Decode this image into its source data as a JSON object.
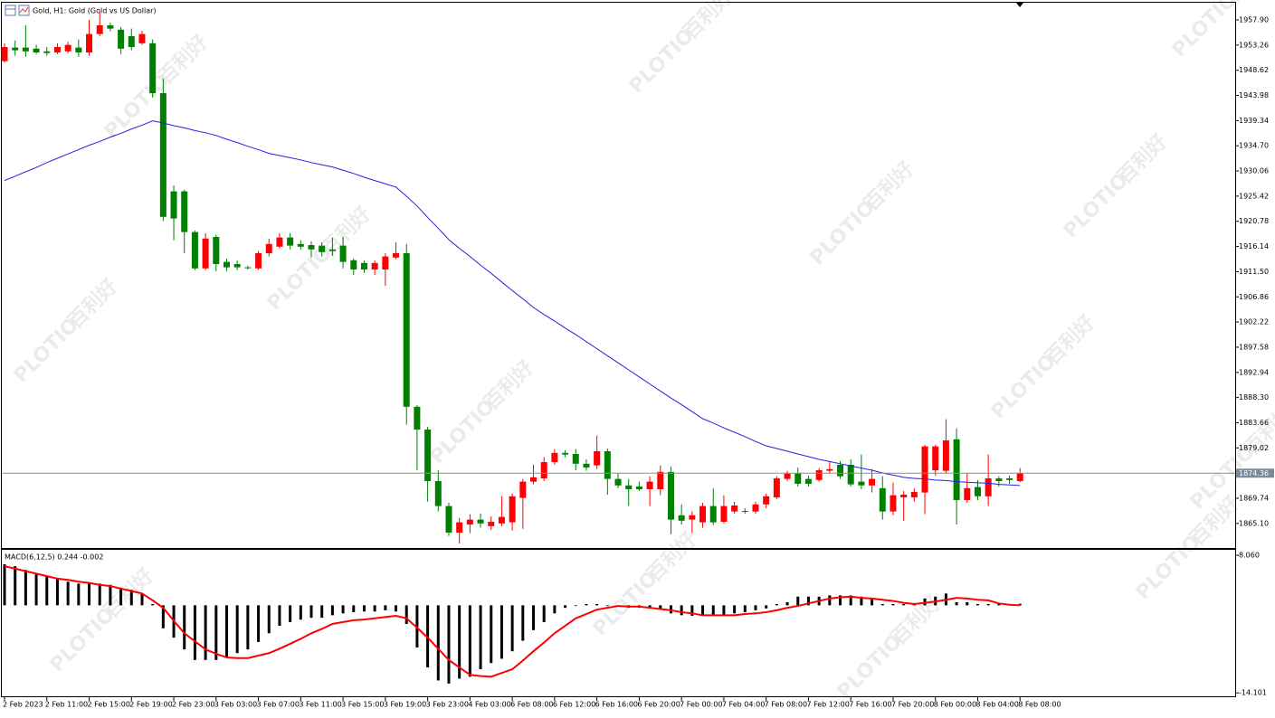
{
  "chart_data": [
    {
      "type": "candlestick",
      "title": "Gold, H1:  Gold (Gold vs US Dollar)",
      "categories": [
        "2 Feb 2023",
        null,
        null,
        null,
        "2 Feb 11:00",
        null,
        null,
        null,
        "2 Feb 15:00",
        null,
        null,
        null,
        "2 Feb 19:00",
        null,
        null,
        null,
        "2 Feb 23:00",
        null,
        null,
        null,
        "3 Feb 03:00",
        null,
        null,
        null,
        "3 Feb 07:00",
        null,
        null,
        null,
        "3 Feb 11:00",
        null,
        null,
        null,
        "3 Feb 15:00",
        null,
        null,
        null,
        "3 Feb 19:00",
        null,
        null,
        null,
        "3 Feb 23:00",
        null,
        null,
        null,
        "4 Feb 03:00",
        null,
        null,
        null,
        "6 Feb 08:00",
        null,
        null,
        null,
        "6 Feb 12:00",
        null,
        null,
        null,
        "6 Feb 16:00",
        null,
        null,
        null,
        "6 Feb 20:00",
        null,
        null,
        null,
        "7 Feb 00:00",
        null,
        null,
        null,
        "7 Feb 04:00",
        null,
        null,
        null,
        "7 Feb 08:00",
        null,
        null,
        null,
        "7 Feb 12:00",
        null,
        null,
        null,
        "7 Feb 16:00",
        null,
        null,
        null,
        "7 Feb 20:00",
        null,
        null,
        null,
        "8 Feb 00:00",
        null,
        null,
        null,
        "8 Feb 04:00",
        null,
        null,
        null,
        "8 Feb 08:00"
      ],
      "open": [
        1950.3,
        1952.8,
        1952.8,
        1952.6,
        1952.1,
        1951.9,
        1952.1,
        1952.8,
        1951.9,
        1955.3,
        1956.9,
        1956.1,
        1954.9,
        1953.6,
        1953.6,
        1944.4,
        1926.3,
        1926.3,
        1918.8,
        1912.1,
        1917.9,
        1913.3,
        1912.9,
        1912.3,
        1912.1,
        1914.9,
        1916.1,
        1917.8,
        1916.6,
        1916.4,
        1916.3,
        1915.6,
        1916.3,
        1913.6,
        1913.1,
        1911.9,
        1911.9,
        1914.1,
        1914.9,
        1886.6,
        1882.4,
        1872.9,
        1868.3,
        1863.4,
        1864.9,
        1865.8,
        1864.6,
        1865.1,
        1865.3,
        1869.8,
        1872.8,
        1873.4,
        1876.4,
        1878.1,
        1877.9,
        1876.1,
        1875.8,
        1878.4,
        1873.3,
        1872.1,
        1871.9,
        1871.4,
        1871.4,
        1874.6,
        1866.6,
        1865.8,
        1865.3,
        1868.3,
        1865.4,
        1867.3,
        1867.3,
        1867.3,
        1868.6,
        1869.9,
        1873.3,
        1874.3,
        1873.3,
        1873.1,
        1874.8,
        1875.9,
        1875.9,
        1872.8,
        1872.1,
        1871.6,
        1867.3,
        1869.9,
        1869.9,
        1870.8,
        1874.9,
        1874.8,
        1880.6,
        1869.4,
        1871.8,
        1870.1,
        1873.4,
        1873.4,
        1872.9
      ],
      "high": [
        1953.6,
        1954.1,
        1956.9,
        1953.3,
        1952.9,
        1953.6,
        1953.9,
        1954.3,
        1957.9,
        1959.3,
        1957.4,
        1956.6,
        1956.3,
        1955.9,
        1954.3,
        1947.1,
        1927.4,
        1926.6,
        1919.1,
        1918.6,
        1918.3,
        1913.9,
        1913.6,
        1912.6,
        1915.3,
        1917.6,
        1918.6,
        1918.6,
        1917.3,
        1917.1,
        1916.9,
        1917.8,
        1917.9,
        1913.9,
        1913.6,
        1913.6,
        1914.9,
        1916.9,
        1916.6,
        1886.9,
        1882.9,
        1874.9,
        1868.9,
        1866.1,
        1866.8,
        1866.9,
        1866.4,
        1870.1,
        1870.6,
        1873.3,
        1875.9,
        1877.3,
        1878.8,
        1878.6,
        1878.8,
        1876.9,
        1881.3,
        1878.9,
        1874.4,
        1873.3,
        1872.8,
        1873.8,
        1875.8,
        1875.6,
        1868.6,
        1867.3,
        1868.9,
        1871.6,
        1870.3,
        1869.1,
        1867.9,
        1869.1,
        1870.6,
        1873.8,
        1874.8,
        1875.4,
        1873.9,
        1875.3,
        1876.6,
        1876.6,
        1876.9,
        1877.8,
        1875.1,
        1873.8,
        1872.6,
        1871.1,
        1871.6,
        1879.6,
        1879.6,
        1884.3,
        1882.6,
        1874.4,
        1873.1,
        1877.8,
        1873.8,
        1873.9,
        1875.3
      ],
      "low": [
        1950.0,
        1951.3,
        1951.1,
        1951.6,
        1951.3,
        1951.6,
        1951.8,
        1951.1,
        1951.3,
        1954.9,
        1955.8,
        1951.6,
        1952.3,
        1953.3,
        1943.6,
        1920.8,
        1917.3,
        1914.9,
        1911.8,
        1911.8,
        1911.6,
        1911.6,
        1911.8,
        1911.9,
        1911.8,
        1914.3,
        1915.8,
        1915.6,
        1915.6,
        1914.1,
        1914.3,
        1914.4,
        1912.1,
        1910.9,
        1911.3,
        1910.9,
        1908.9,
        1913.8,
        1883.3,
        1874.9,
        1869.1,
        1867.3,
        1862.8,
        1861.4,
        1863.3,
        1864.3,
        1863.9,
        1864.6,
        1863.8,
        1864.1,
        1872.3,
        1872.9,
        1875.9,
        1877.3,
        1874.9,
        1874.8,
        1875.1,
        1870.4,
        1871.6,
        1868.3,
        1871.1,
        1868.3,
        1870.3,
        1863.1,
        1864.9,
        1863.3,
        1864.3,
        1864.8,
        1865.1,
        1866.9,
        1866.9,
        1866.9,
        1867.9,
        1869.6,
        1872.9,
        1871.9,
        1871.9,
        1872.8,
        1874.3,
        1873.3,
        1871.9,
        1871.4,
        1870.8,
        1865.8,
        1866.6,
        1865.6,
        1869.1,
        1866.8,
        1873.9,
        1874.3,
        1864.9,
        1868.9,
        1869.4,
        1868.3,
        1871.9,
        1872.4,
        1872.7
      ],
      "close": [
        1952.9,
        1952.3,
        1952.1,
        1951.9,
        1951.8,
        1952.9,
        1953.3,
        1951.9,
        1955.3,
        1956.9,
        1956.3,
        1952.6,
        1952.9,
        1955.3,
        1944.4,
        1921.6,
        1921.3,
        1918.8,
        1912.1,
        1917.6,
        1912.9,
        1912.3,
        1912.3,
        1912.2,
        1914.9,
        1916.6,
        1917.8,
        1916.3,
        1916.1,
        1915.6,
        1915.1,
        1915.3,
        1913.3,
        1911.9,
        1911.9,
        1913.1,
        1914.3,
        1914.9,
        1886.6,
        1882.4,
        1872.9,
        1868.3,
        1863.4,
        1865.3,
        1865.8,
        1865.1,
        1865.4,
        1866.3,
        1870.1,
        1872.8,
        1873.6,
        1876.4,
        1878.1,
        1877.8,
        1876.1,
        1875.4,
        1878.4,
        1873.3,
        1872.1,
        1871.4,
        1871.4,
        1872.8,
        1874.6,
        1865.8,
        1865.6,
        1866.6,
        1868.3,
        1865.3,
        1868.3,
        1868.4,
        1867.4,
        1868.6,
        1870.1,
        1873.4,
        1874.3,
        1872.4,
        1872.4,
        1874.9,
        1875.1,
        1873.8,
        1872.3,
        1872.1,
        1873.3,
        1867.3,
        1870.3,
        1870.4,
        1870.9,
        1879.3,
        1879.3,
        1880.4,
        1869.4,
        1871.6,
        1870.1,
        1873.4,
        1872.9,
        1873.1,
        1874.36
      ],
      "bull_color": "#ff0000",
      "bear_color": "#008000",
      "overlays": [
        {
          "type": "line",
          "color": "#2020e0",
          "values": [
            1928.3,
            1929.1,
            1929.9,
            1930.7,
            1931.6,
            1932.4,
            1933.2,
            1934.0,
            1934.8,
            1935.5,
            1936.3,
            1937.0,
            1937.8,
            1938.5,
            1939.3,
            1938.9,
            1938.4,
            1938.0,
            1937.5,
            1937.1,
            1936.6,
            1935.9,
            1935.3,
            1934.6,
            1934.0,
            1933.3,
            1932.9,
            1932.5,
            1932.1,
            1931.6,
            1931.2,
            1930.8,
            1930.2,
            1929.6,
            1928.9,
            1928.3,
            1927.7,
            1927.1,
            1925.4,
            1923.6,
            1921.5,
            1919.5,
            1917.4,
            1915.8,
            1914.3,
            1912.7,
            1911.2,
            1909.6,
            1908.0,
            1906.5,
            1904.9,
            1903.6,
            1902.4,
            1901.1,
            1899.9,
            1898.6,
            1897.3,
            1896.0,
            1894.7,
            1893.4,
            1892.1,
            1890.8,
            1889.5,
            1888.2,
            1887.0,
            1885.7,
            1884.4,
            1883.6,
            1882.7,
            1881.9,
            1881.1,
            1880.2,
            1879.4,
            1878.9,
            1878.4,
            1877.9,
            1877.4,
            1876.9,
            1876.5,
            1876.1,
            1875.7,
            1875.3,
            1874.9,
            1874.4,
            1874.0,
            1873.6,
            1873.4,
            1873.3,
            1873.1,
            1873.0,
            1872.8,
            1872.7,
            1872.6,
            1872.5,
            1872.3,
            1872.2,
            1872.1
          ]
        }
      ],
      "current_price": 1874.36,
      "ylim": [
        1860.57,
        1961.07
      ],
      "yticks": [
        {
          "value": 1957.9,
          "label": "1957.90"
        },
        1953.26,
        1948.62,
        1943.98,
        1939.34,
        {
          "value": 1934.7,
          "label": "1934.70"
        },
        1930.06,
        1925.42,
        1920.78,
        1916.14,
        {
          "value": 1911.5,
          "label": "1911.50"
        },
        1906.86,
        1902.22,
        1897.58,
        1892.94,
        {
          "value": 1888.3,
          "label": "1888.30"
        },
        1883.66,
        1879.02,
        1869.74,
        {
          "value": 1865.1,
          "label": "1865.10"
        }
      ],
      "watermark": [
        "PLOTIO",
        "百利好"
      ]
    },
    {
      "type": "macd",
      "title": "MACD(6,12,5) 0.244 -0.002",
      "histogram": [
        6.6,
        6.3,
        5.7,
        5.1,
        4.6,
        4.3,
        3.8,
        3.5,
        3.5,
        3.5,
        3.3,
        2.8,
        2.5,
        1.8,
        0.2,
        -3.7,
        -5.2,
        -7.1,
        -8.8,
        -8.8,
        -8.8,
        -8.3,
        -7.7,
        -7.1,
        -5.9,
        -4.5,
        -3.3,
        -2.7,
        -2.3,
        -2.0,
        -2.0,
        -1.6,
        -1.3,
        -1.1,
        -1.0,
        -1.0,
        -0.8,
        -1.0,
        -3.0,
        -6.8,
        -10.0,
        -12.1,
        -12.6,
        -11.8,
        -11.5,
        -10.3,
        -9.3,
        -8.6,
        -7.4,
        -5.7,
        -4.0,
        -2.7,
        -1.3,
        -0.4,
        -0.1,
        0.2,
        0.2,
        -0.1,
        -0.2,
        -0.4,
        -0.4,
        -0.5,
        -0.5,
        -1.3,
        -1.6,
        -1.7,
        -1.6,
        -1.6,
        -1.6,
        -1.3,
        -1.1,
        -0.8,
        -0.5,
        0.2,
        0.5,
        1.4,
        1.4,
        1.4,
        1.6,
        1.6,
        1.6,
        1.4,
        1.1,
        0.2,
        0.2,
        0.2,
        0.2,
        1.1,
        1.4,
        1.9,
        0.5,
        0.5,
        0.2,
        0.2,
        0.2,
        0.2,
        0.244
      ],
      "signal": [
        6.3,
        5.9,
        5.5,
        5.1,
        4.7,
        4.3,
        4.1,
        3.8,
        3.6,
        3.3,
        3.1,
        2.7,
        2.3,
        1.9,
        0.8,
        -0.4,
        -2.5,
        -4.5,
        -5.8,
        -7.1,
        -7.8,
        -8.4,
        -8.5,
        -8.5,
        -8.1,
        -7.7,
        -7.0,
        -6.2,
        -5.4,
        -4.5,
        -3.8,
        -3.0,
        -2.7,
        -2.4,
        -2.3,
        -2.1,
        -1.9,
        -1.7,
        -2.1,
        -3.6,
        -5.2,
        -7.0,
        -8.8,
        -10.0,
        -11.2,
        -11.4,
        -11.5,
        -10.9,
        -10.3,
        -8.9,
        -7.4,
        -6.0,
        -4.5,
        -3.3,
        -2.1,
        -1.4,
        -0.7,
        -0.4,
        -0.1,
        -0.2,
        -0.2,
        -0.4,
        -0.6,
        -0.8,
        -1.1,
        -1.3,
        -1.6,
        -1.6,
        -1.6,
        -1.6,
        -1.4,
        -1.3,
        -1.1,
        -0.8,
        -0.4,
        -0.1,
        0.3,
        0.7,
        1.1,
        1.3,
        1.4,
        1.2,
        1.1,
        0.9,
        0.7,
        0.4,
        0.2,
        0.4,
        0.6,
        0.9,
        1.2,
        1.1,
        0.9,
        0.8,
        0.3,
        0.1,
        -0.002
      ],
      "histogram_color": "#000000",
      "signal_color": "#ff0000",
      "ylim": [
        -14.8,
        8.94
      ],
      "yticks": [
        {
          "value": 8.06,
          "label": "8.060"
        },
        -14.101
      ]
    }
  ]
}
